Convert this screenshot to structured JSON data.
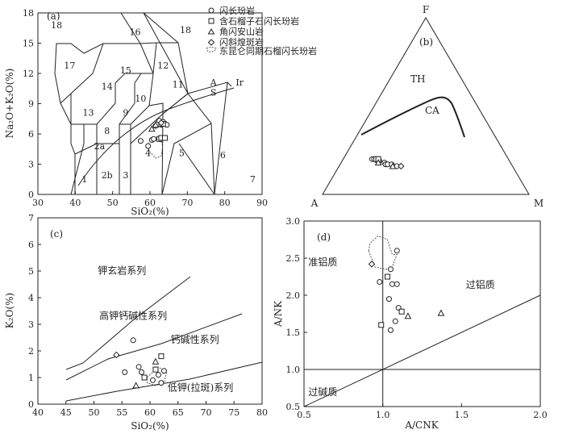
{
  "legend": {
    "items": [
      {
        "label": "闪长玢岩",
        "marker": "circle"
      },
      {
        "label": "含石榴子石闪长玢岩",
        "marker": "square"
      },
      {
        "label": "角闪安山岩",
        "marker": "triangle"
      },
      {
        "label": "闪斜煌斑岩",
        "marker": "diamond"
      },
      {
        "label": "东昆仑同期石榴闪长玢岩",
        "marker": "dashed-outline"
      }
    ]
  },
  "chart_data": [
    {
      "id": "a",
      "type": "scatter",
      "panel_label": "(a)",
      "xlabel": "SiO₂(%)",
      "ylabel": "Na₂O+K₂O(%)",
      "xlim": [
        30,
        90
      ],
      "ylim": [
        0,
        18
      ],
      "xticks": [
        30,
        40,
        50,
        60,
        70,
        80,
        90
      ],
      "yticks": [
        0,
        3,
        6,
        9,
        12,
        15,
        18
      ],
      "field_labels": [
        {
          "text": "1",
          "x": 42.5,
          "y": 1.2
        },
        {
          "text": "2b",
          "x": 48.5,
          "y": 1.6
        },
        {
          "text": "2a",
          "x": 46.5,
          "y": 4.5
        },
        {
          "text": "3",
          "x": 53.5,
          "y": 1.6
        },
        {
          "text": "4",
          "x": 59.5,
          "y": 3.8
        },
        {
          "text": "5",
          "x": 68.5,
          "y": 3.8
        },
        {
          "text": "6",
          "x": 79.5,
          "y": 3.6
        },
        {
          "text": "7",
          "x": 87.5,
          "y": 1.2
        },
        {
          "text": "8",
          "x": 48.5,
          "y": 6.0
        },
        {
          "text": "9",
          "x": 53.5,
          "y": 7.8
        },
        {
          "text": "10",
          "x": 57.5,
          "y": 9.2
        },
        {
          "text": "11",
          "x": 67.5,
          "y": 10.6
        },
        {
          "text": "12",
          "x": 63.5,
          "y": 12.5
        },
        {
          "text": "13",
          "x": 43.5,
          "y": 7.8
        },
        {
          "text": "14",
          "x": 48.5,
          "y": 10.4
        },
        {
          "text": "15",
          "x": 53.5,
          "y": 12.0
        },
        {
          "text": "16",
          "x": 56.0,
          "y": 15.8
        },
        {
          "text": "17",
          "x": 38.5,
          "y": 12.5
        },
        {
          "text": "18",
          "x": 35.0,
          "y": 16.5
        },
        {
          "text": "18",
          "x": 69.5,
          "y": 16.0
        },
        {
          "text": "A",
          "x": 77.0,
          "y": 10.8
        },
        {
          "text": "S",
          "x": 77.0,
          "y": 9.8
        },
        {
          "text": "Ir",
          "x": 84.0,
          "y": 10.8
        }
      ],
      "series": [
        {
          "marker": "circle",
          "x": [
            57.5,
            59.5,
            60.5,
            61.0,
            61.5,
            62.0,
            62.5,
            63.0,
            63.5,
            64.0,
            64.5
          ],
          "y": [
            5.3,
            4.8,
            5.4,
            5.5,
            6.8,
            7.0,
            7.3,
            6.9,
            7.2,
            7.0,
            6.9
          ]
        },
        {
          "marker": "square",
          "x": [
            62.5,
            63.0,
            63.5,
            64.0
          ],
          "y": [
            5.5,
            5.6,
            7.0,
            5.6
          ]
        },
        {
          "marker": "triangle",
          "x": [
            60.5,
            61.5
          ],
          "y": [
            6.5,
            6.9
          ]
        },
        {
          "marker": "diamond",
          "x": [
            63.0
          ],
          "y": [
            7.1
          ]
        }
      ],
      "shaded_field": {
        "x": [
          59.5,
          61.0,
          62.8,
          63.4,
          63.0,
          61.5,
          59.8
        ],
        "y": [
          5.0,
          5.6,
          5.4,
          4.8,
          3.8,
          3.6,
          4.3
        ]
      }
    },
    {
      "id": "b",
      "type": "ternary",
      "panel_label": "(b)",
      "vertices": [
        "F",
        "A",
        "M"
      ],
      "field_labels": [
        "TH",
        "CA"
      ],
      "series": [
        {
          "marker": "circle",
          "a": [
            0.66,
            0.65,
            0.64,
            0.64,
            0.63,
            0.61,
            0.61,
            0.6,
            0.58,
            0.56
          ],
          "m": [
            0.14,
            0.15,
            0.16,
            0.17,
            0.18,
            0.21,
            0.22,
            0.23,
            0.25,
            0.28
          ]
        },
        {
          "marker": "square",
          "a": [
            0.64,
            0.63
          ],
          "m": [
            0.16,
            0.17
          ]
        },
        {
          "marker": "triangle",
          "a": [
            0.64,
            0.58
          ],
          "m": [
            0.18,
            0.26
          ]
        },
        {
          "marker": "diamond",
          "a": [
            0.54
          ],
          "m": [
            0.3
          ]
        }
      ]
    },
    {
      "id": "c",
      "type": "scatter",
      "panel_label": "(c)",
      "xlabel": "SiO₂(%)",
      "ylabel": "K₂O(%)",
      "xlim": [
        40,
        80
      ],
      "ylim": [
        0,
        7
      ],
      "xticks": [
        40,
        45,
        50,
        55,
        60,
        65,
        70,
        75,
        80
      ],
      "yticks": [
        0,
        1,
        2,
        3,
        4,
        5,
        6,
        7
      ],
      "series_labels": [
        {
          "text": "钾玄岩系列",
          "x": 55,
          "y": 4.9
        },
        {
          "text": "高钾钙碱性系列",
          "x": 57,
          "y": 3.2
        },
        {
          "text": "钙碱性系列",
          "x": 68,
          "y": 2.3
        },
        {
          "text": "低钾(拉斑)系列",
          "x": 69,
          "y": 0.5
        }
      ],
      "series": [
        {
          "marker": "circle",
          "x": [
            55.5,
            57.0,
            58.0,
            58.5,
            60.5,
            61.0,
            61.5,
            62.0,
            62.5
          ],
          "y": [
            1.2,
            2.4,
            1.4,
            1.2,
            0.9,
            1.3,
            1.1,
            0.8,
            1.25
          ]
        },
        {
          "marker": "square",
          "x": [
            59.0,
            61.0,
            62.0
          ],
          "y": [
            1.0,
            1.3,
            1.8
          ]
        },
        {
          "marker": "triangle",
          "x": [
            57.5,
            61.0
          ],
          "y": [
            0.7,
            1.6
          ]
        },
        {
          "marker": "diamond",
          "x": [
            54.0
          ],
          "y": [
            1.85
          ]
        }
      ],
      "shaded_field": {
        "x": [
          59.5,
          61.5,
          63.0,
          62.5,
          61.0,
          59.5
        ],
        "y": [
          1.0,
          1.4,
          1.2,
          0.8,
          0.7,
          0.8
        ]
      }
    },
    {
      "id": "d",
      "type": "scatter",
      "panel_label": "(d)",
      "xlabel": "A/CNK",
      "ylabel": "A/NK",
      "xlim": [
        0.5,
        2.0
      ],
      "ylim": [
        0.5,
        3.0
      ],
      "xticks": [
        0.5,
        1.0,
        1.5,
        2.0
      ],
      "yticks": [
        0.5,
        1.0,
        1.5,
        2.0,
        2.5,
        3.0
      ],
      "region_labels": [
        {
          "text": "准铝质",
          "x": 0.62,
          "y": 2.4
        },
        {
          "text": "过铝质",
          "x": 1.62,
          "y": 2.1
        },
        {
          "text": "过碱质",
          "x": 0.62,
          "y": 0.65
        }
      ],
      "series": [
        {
          "marker": "circle",
          "x": [
            0.98,
            1.05,
            1.06,
            1.09,
            1.04,
            1.1,
            1.08,
            1.05,
            1.09
          ],
          "y": [
            2.18,
            2.35,
            2.15,
            2.15,
            1.95,
            1.83,
            1.65,
            1.53,
            2.6
          ]
        },
        {
          "marker": "square",
          "x": [
            0.99,
            1.03,
            1.12
          ],
          "y": [
            1.6,
            2.25,
            1.78
          ]
        },
        {
          "marker": "triangle",
          "x": [
            1.16,
            1.37
          ],
          "y": [
            1.72,
            1.76
          ]
        },
        {
          "marker": "diamond",
          "x": [
            0.93
          ],
          "y": [
            2.42
          ]
        }
      ],
      "shaded_field": {
        "x": [
          0.91,
          0.92,
          0.97,
          1.03,
          1.06,
          1.09,
          1.06,
          1.02,
          0.95
        ],
        "y": [
          2.6,
          2.7,
          2.8,
          2.75,
          2.55,
          2.55,
          2.38,
          2.35,
          2.38
        ]
      }
    }
  ]
}
